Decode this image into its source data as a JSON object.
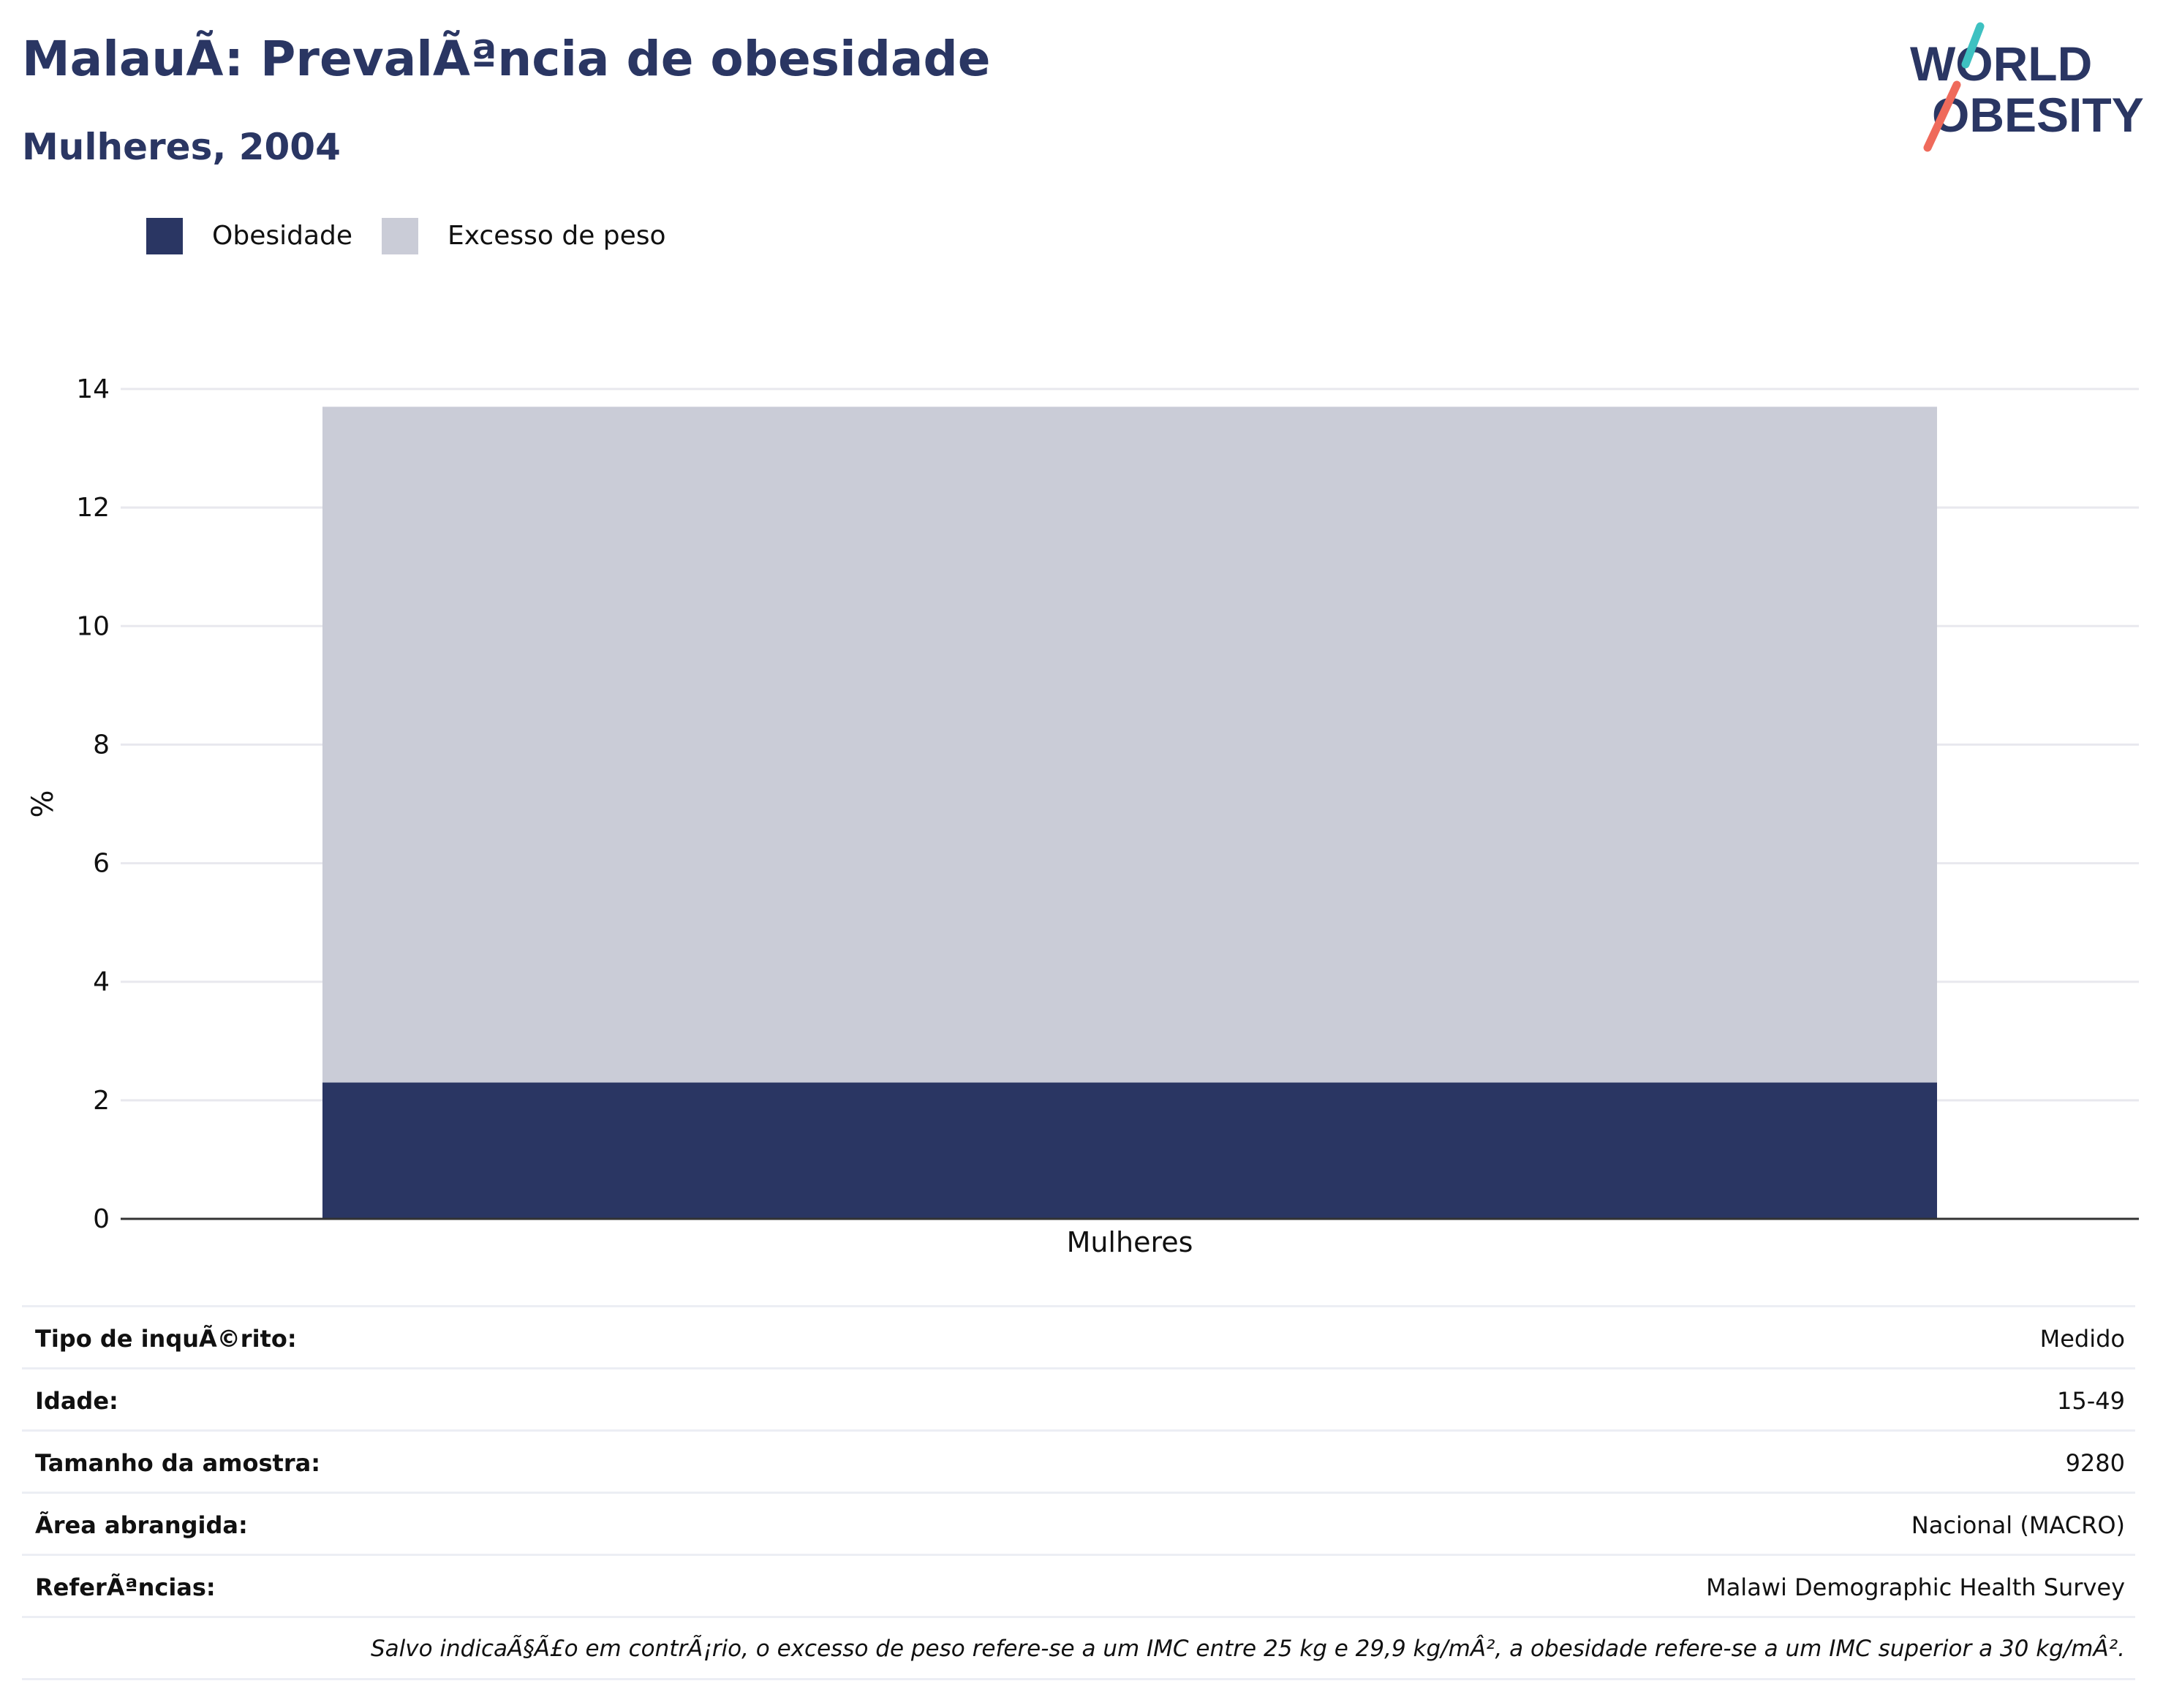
{
  "header": {
    "title": "MalauÃ: PrevalÃªncia de obesidade",
    "subtitle": "Mulheres, 2004"
  },
  "logo": {
    "line1": "WORLD",
    "line2": "OBESITY"
  },
  "colors": {
    "obesity": "#2a3663",
    "overweight": "#caccd7",
    "brand_text": "#2a3663",
    "logo_teal": "#3ec1c1",
    "logo_coral": "#ef6a5b",
    "grid": "#e8e8ee",
    "axis": "#333333"
  },
  "chart_data": {
    "type": "bar",
    "stacked": true,
    "categories": [
      "Mulheres"
    ],
    "series": [
      {
        "name": "Obesidade",
        "values": [
          2.3
        ]
      },
      {
        "name": "Excesso de peso",
        "values": [
          11.4
        ]
      }
    ],
    "xlabel": "",
    "ylabel": "%",
    "ylim": [
      0,
      14
    ],
    "yticks": [
      0,
      2,
      4,
      6,
      8,
      10,
      12,
      14
    ],
    "grid": true,
    "legend": "top-left"
  },
  "info": {
    "rows": [
      {
        "label": "Tipo de inquÃ©rito:",
        "value": "Medido"
      },
      {
        "label": "Idade:",
        "value": "15-49"
      },
      {
        "label": "Tamanho da amostra:",
        "value": "9280"
      },
      {
        "label": "Ãrea abrangida:",
        "value": "Nacional (MACRO)"
      },
      {
        "label": "ReferÃªncias:",
        "value": "Malawi Demographic Health Survey"
      }
    ],
    "note": "Salvo indicaÃ§Ã£o em contrÃ¡rio, o excesso de peso refere-se a um IMC entre 25 kg e 29,9 kg/mÂ², a obesidade refere-se a um IMC superior a 30 kg/mÂ²."
  }
}
